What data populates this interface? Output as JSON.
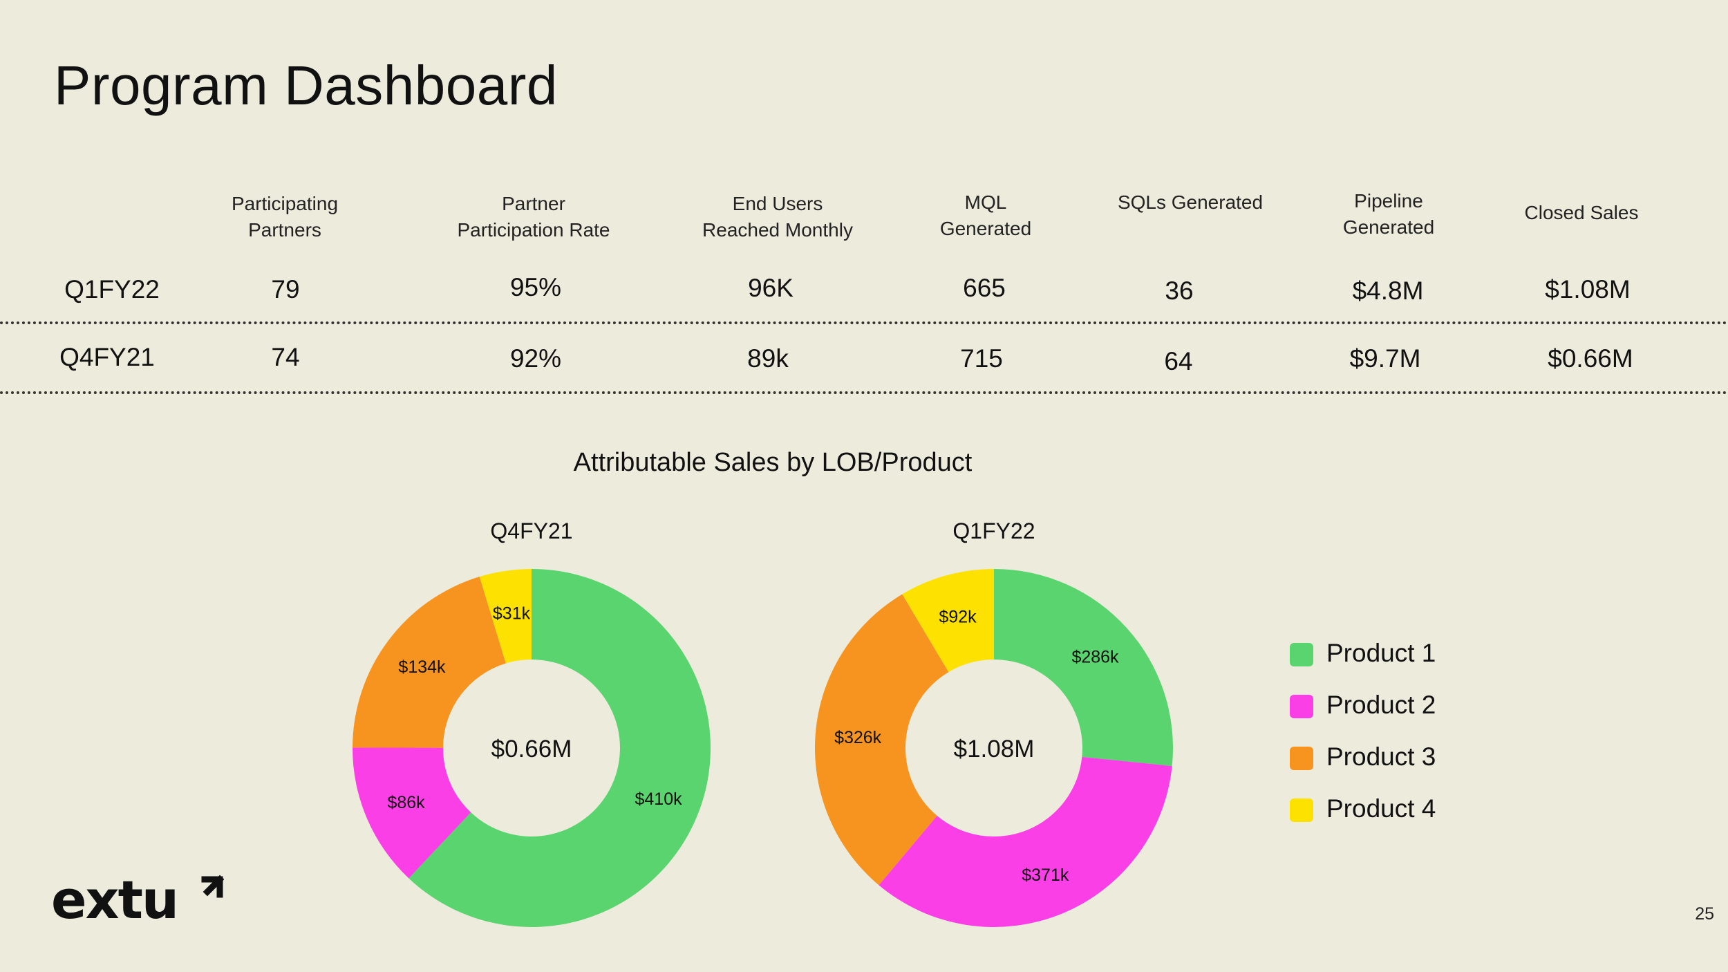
{
  "slide": {
    "title": "Program Dashboard",
    "page_number": "25",
    "logo_text": "extu"
  },
  "metrics": {
    "headers": [
      [
        "Participating",
        "Partners"
      ],
      [
        "Partner",
        "Participation Rate"
      ],
      [
        "End Users",
        "Reached Monthly"
      ],
      [
        "MQL",
        "Generated"
      ],
      [
        "SQLs Generated"
      ],
      [
        "Pipeline",
        "Generated"
      ],
      [
        "Closed Sales"
      ]
    ],
    "rows": [
      {
        "label": "Q1FY22",
        "values": [
          "79",
          "95%",
          "96K",
          "665",
          "36",
          "$4.8M",
          "$1.08M"
        ]
      },
      {
        "label": "Q4FY21",
        "values": [
          "74",
          "92%",
          "89k",
          "715",
          "64",
          "$9.7M",
          "$0.66M"
        ]
      }
    ]
  },
  "colors": {
    "background": "#ecebdc",
    "product_1": "#5ad46e",
    "product_2": "#fb3fe6",
    "product_3": "#f7931f",
    "product_4": "#fde100"
  },
  "chart_data": {
    "type": "pie",
    "title": "Attributable Sales by LOB/Product",
    "legend_position": "right",
    "series_names": [
      "Product 1",
      "Product 2",
      "Product 3",
      "Product 4"
    ],
    "charts": [
      {
        "title": "Q4FY21",
        "center_label": "$0.66M",
        "values": [
          410,
          86,
          134,
          31
        ],
        "labels": [
          "$410k",
          "$86k",
          "$134k",
          "$31k"
        ]
      },
      {
        "title": "Q1FY22",
        "center_label": "$1.08M",
        "values": [
          286,
          371,
          326,
          92
        ],
        "labels": [
          "$286k",
          "$371k",
          "$326k",
          "$92k"
        ]
      }
    ]
  }
}
